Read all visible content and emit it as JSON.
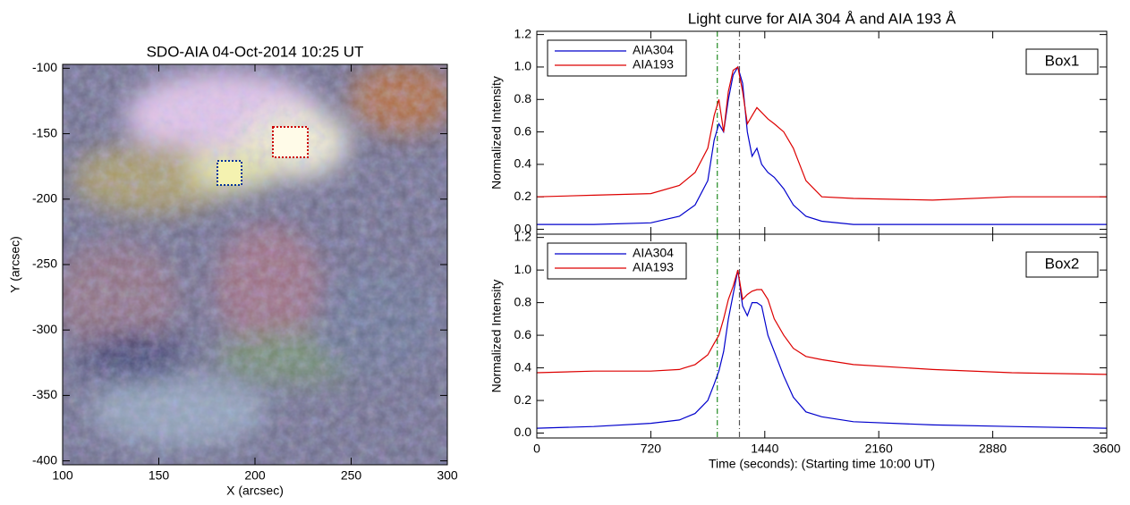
{
  "chart_data": [
    {
      "type": "image",
      "title": "SDO-AIA 04-Oct-2014 10:25 UT",
      "xlabel": "X (arcsec)",
      "ylabel": "Y (arcsec)",
      "xlim": [
        100,
        300
      ],
      "ylim": [
        -403,
        -97
      ],
      "xticks": [
        100,
        150,
        200,
        250,
        300
      ],
      "yticks": [
        -100,
        -150,
        -200,
        -250,
        -300,
        -350,
        -400
      ]
    },
    {
      "type": "line",
      "title": "Light curve for AIA 304 Å and AIA 193 Å",
      "ylabel": "Normalized Intensity",
      "annotation": "Box1",
      "legend": "upper left",
      "x": [
        0,
        360,
        720,
        900,
        1000,
        1080,
        1120,
        1150,
        1180,
        1210,
        1240,
        1270,
        1300,
        1330,
        1360,
        1390,
        1420,
        1460,
        1500,
        1560,
        1620,
        1700,
        1800,
        2000,
        2500,
        3000,
        3600
      ],
      "series": [
        {
          "name": "AIA304",
          "color": "#0000cc",
          "values": [
            0.03,
            0.03,
            0.04,
            0.08,
            0.15,
            0.3,
            0.55,
            0.65,
            0.6,
            0.8,
            0.95,
            1.0,
            0.9,
            0.6,
            0.45,
            0.5,
            0.4,
            0.35,
            0.32,
            0.25,
            0.15,
            0.08,
            0.05,
            0.03,
            0.03,
            0.03,
            0.03
          ]
        },
        {
          "name": "AIA193",
          "color": "#dd0000",
          "values": [
            0.2,
            0.21,
            0.22,
            0.27,
            0.35,
            0.5,
            0.7,
            0.8,
            0.6,
            0.85,
            0.98,
            1.0,
            0.85,
            0.65,
            0.7,
            0.75,
            0.72,
            0.68,
            0.65,
            0.6,
            0.5,
            0.3,
            0.2,
            0.19,
            0.18,
            0.2,
            0.2
          ]
        }
      ],
      "vlines": [
        {
          "x": 1140,
          "color": "#228b22"
        },
        {
          "x": 1280,
          "color": "#555555"
        }
      ],
      "xlim": [
        0,
        3600
      ],
      "xticks": [
        0,
        720,
        1440,
        2160,
        2880,
        3600
      ],
      "ylim": [
        -0.03,
        1.22
      ],
      "yticks": [
        {
          "value": 0,
          "label": "0.0"
        },
        0.2,
        0.4,
        0.6,
        0.8,
        {
          "value": 1,
          "label": "1.0"
        },
        1.2
      ]
    },
    {
      "type": "line",
      "ylabel": "Normalized Intensity",
      "xlabel": "Time (seconds): (Starting time 10:00 UT)",
      "annotation": "Box2",
      "legend": "upper left",
      "x": [
        0,
        360,
        720,
        900,
        1000,
        1080,
        1120,
        1150,
        1180,
        1210,
        1240,
        1270,
        1300,
        1330,
        1360,
        1390,
        1420,
        1460,
        1500,
        1560,
        1620,
        1700,
        1800,
        2000,
        2500,
        3000,
        3600
      ],
      "series": [
        {
          "name": "AIA304",
          "color": "#0000cc",
          "values": [
            0.03,
            0.04,
            0.06,
            0.08,
            0.12,
            0.2,
            0.3,
            0.38,
            0.5,
            0.7,
            0.85,
            1.0,
            0.78,
            0.72,
            0.8,
            0.8,
            0.78,
            0.6,
            0.5,
            0.35,
            0.22,
            0.13,
            0.1,
            0.07,
            0.05,
            0.04,
            0.03
          ]
        },
        {
          "name": "AIA193",
          "color": "#dd0000",
          "values": [
            0.37,
            0.38,
            0.38,
            0.39,
            0.42,
            0.48,
            0.55,
            0.6,
            0.7,
            0.82,
            0.9,
            1.0,
            0.82,
            0.85,
            0.87,
            0.88,
            0.88,
            0.82,
            0.7,
            0.6,
            0.52,
            0.47,
            0.45,
            0.42,
            0.39,
            0.37,
            0.36
          ]
        }
      ],
      "vlines": [
        {
          "x": 1140,
          "color": "#228b22"
        },
        {
          "x": 1280,
          "color": "#555555"
        }
      ],
      "xlim": [
        0,
        3600
      ],
      "xticks": [
        0,
        720,
        1440,
        2160,
        2880,
        3600
      ],
      "ylim": [
        -0.03,
        1.22
      ],
      "yticks": [
        {
          "value": 0,
          "label": "0.0"
        },
        0.2,
        0.4,
        0.6,
        0.8,
        {
          "value": 1,
          "label": "1.0"
        },
        1.2
      ]
    }
  ]
}
